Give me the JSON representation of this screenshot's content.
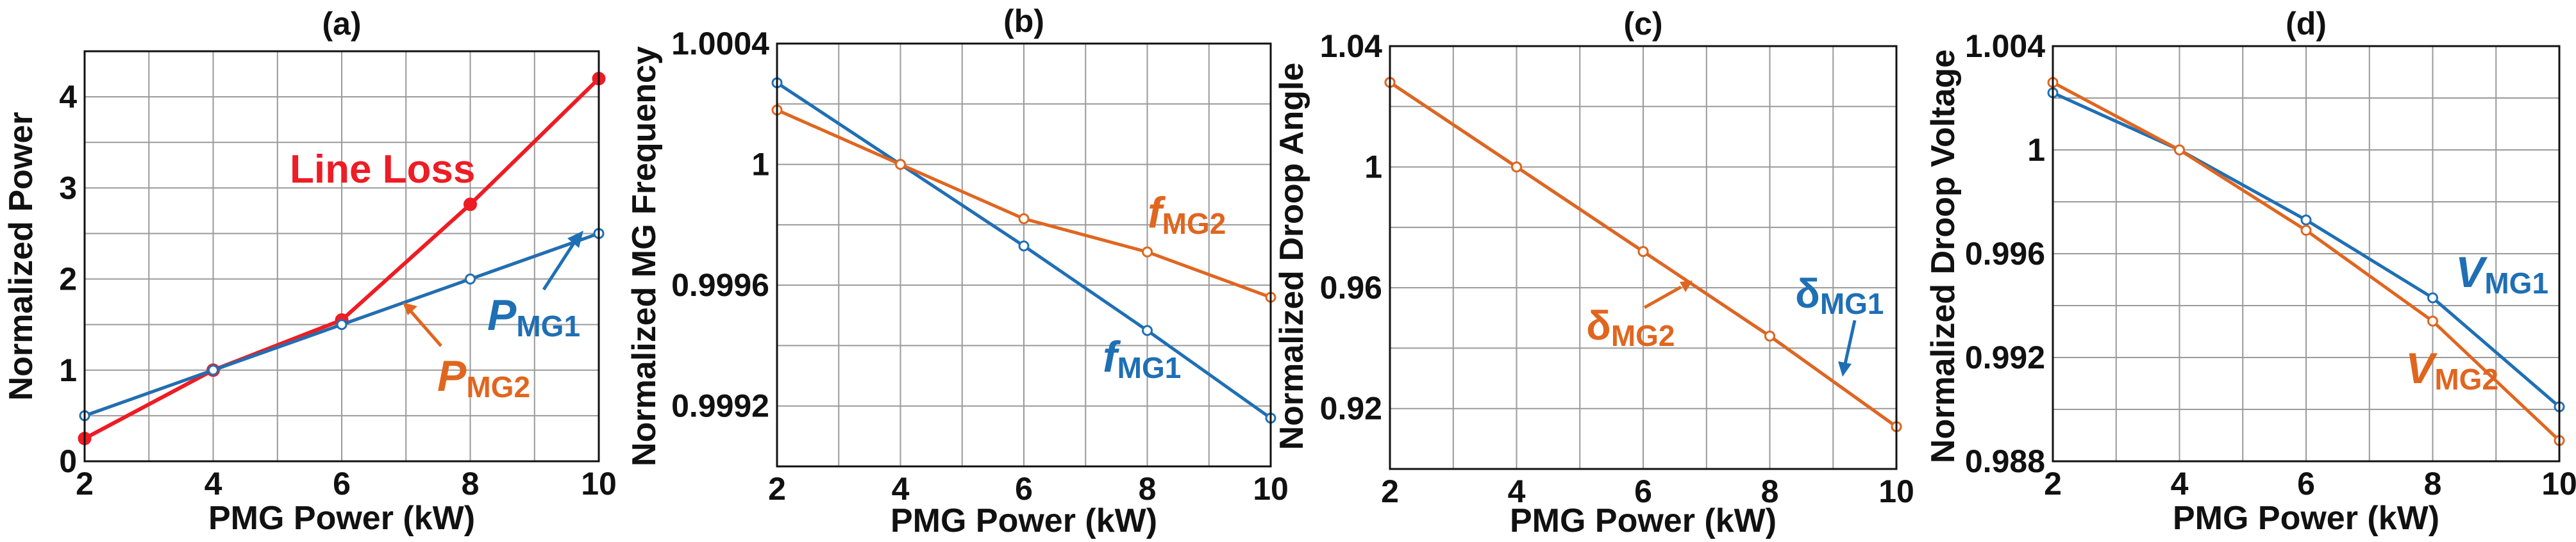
{
  "colors": {
    "red": "#ee1c24",
    "blue": "#1f6fb5",
    "orange": "#e0661f",
    "grid": "#9a9a9a",
    "axis": "#111111"
  },
  "chart_data": [
    {
      "type": "line",
      "title": "(a)",
      "xlabel": "PMG Power (kW)",
      "ylabel": "Normalized Power",
      "x": [
        2,
        4,
        6,
        8,
        10
      ],
      "xlim": [
        2,
        10
      ],
      "ylim": [
        0,
        4.5
      ],
      "xticks": [
        "2",
        "4",
        "6",
        "8",
        "10"
      ],
      "yticks": [
        "0",
        "1",
        "2",
        "3",
        "4"
      ],
      "grid": true,
      "series": [
        {
          "name": "Line Loss",
          "color": "red",
          "values": [
            0.25,
            1.0,
            1.55,
            2.82,
            4.2
          ]
        },
        {
          "name": "PMG2",
          "color": "orange",
          "values": [
            0.5,
            1.0,
            1.5,
            2.0,
            2.5
          ]
        },
        {
          "name": "PMG1",
          "color": "blue",
          "values": [
            0.5,
            1.0,
            1.5,
            2.0,
            2.5
          ]
        }
      ],
      "annotations": [
        {
          "main": "Line Loss",
          "sub": "",
          "color": "red"
        },
        {
          "main": "P",
          "sub": "MG1",
          "color": "blue"
        },
        {
          "main": "P",
          "sub": "MG2",
          "color": "orange"
        }
      ]
    },
    {
      "type": "line",
      "title": "(b)",
      "xlabel": "PMG Power (kW)",
      "ylabel": "Normalized MG Frequency",
      "x": [
        2,
        4,
        6,
        8,
        10
      ],
      "xlim": [
        2,
        10
      ],
      "ylim": [
        0.999,
        1.0004
      ],
      "xticks": [
        "2",
        "4",
        "6",
        "8",
        "10"
      ],
      "yticks": [
        "0.9992",
        "0.9996",
        "1",
        "1.0004"
      ],
      "grid": true,
      "series": [
        {
          "name": "fMG1",
          "color": "blue",
          "values": [
            1.00027,
            1.0,
            0.99973,
            0.99945,
            0.99916
          ]
        },
        {
          "name": "fMG2",
          "color": "orange",
          "values": [
            1.00018,
            1.0,
            0.99982,
            0.99971,
            0.99956
          ]
        }
      ],
      "annotations": [
        {
          "main": "f",
          "sub": "MG2",
          "color": "orange"
        },
        {
          "main": "f",
          "sub": "MG1",
          "color": "blue"
        }
      ]
    },
    {
      "type": "line",
      "title": "(c)",
      "xlabel": "PMG Power (kW)",
      "ylabel": "Normalized Droop Angle",
      "x": [
        2,
        4,
        6,
        8,
        10
      ],
      "xlim": [
        2,
        10
      ],
      "ylim": [
        0.9,
        1.04
      ],
      "xticks": [
        "2",
        "4",
        "6",
        "8",
        "10"
      ],
      "yticks": [
        "0.92",
        "0.96",
        "1",
        "1.04"
      ],
      "grid": true,
      "series": [
        {
          "name": "deltaMG1",
          "color": "blue",
          "values": [
            1.028,
            1.0,
            0.972,
            0.944,
            0.914
          ]
        },
        {
          "name": "deltaMG2",
          "color": "orange",
          "values": [
            1.028,
            1.0,
            0.972,
            0.944,
            0.914
          ]
        }
      ],
      "annotations": [
        {
          "main": "δ",
          "sub": "MG1",
          "color": "blue"
        },
        {
          "main": "δ",
          "sub": "MG2",
          "color": "orange"
        }
      ]
    },
    {
      "type": "line",
      "title": "(d)",
      "xlabel": "PMG Power (kW)",
      "ylabel": "Normalized Droop Voltage",
      "x": [
        2,
        4,
        6,
        8,
        10
      ],
      "xlim": [
        2,
        10
      ],
      "ylim": [
        0.988,
        1.004
      ],
      "xticks": [
        "2",
        "4",
        "6",
        "8",
        "10"
      ],
      "yticks": [
        "0.988",
        "0.992",
        "0.996",
        "1",
        "1.004"
      ],
      "grid": true,
      "series": [
        {
          "name": "VMG1",
          "color": "blue",
          "values": [
            1.0022,
            1.0,
            0.9973,
            0.9943,
            0.9901
          ]
        },
        {
          "name": "VMG2",
          "color": "orange",
          "values": [
            1.0026,
            1.0,
            0.9969,
            0.9934,
            0.9888
          ]
        }
      ],
      "annotations": [
        {
          "main": "V",
          "sub": "MG1",
          "color": "blue"
        },
        {
          "main": "V",
          "sub": "MG2",
          "color": "orange"
        }
      ]
    }
  ]
}
